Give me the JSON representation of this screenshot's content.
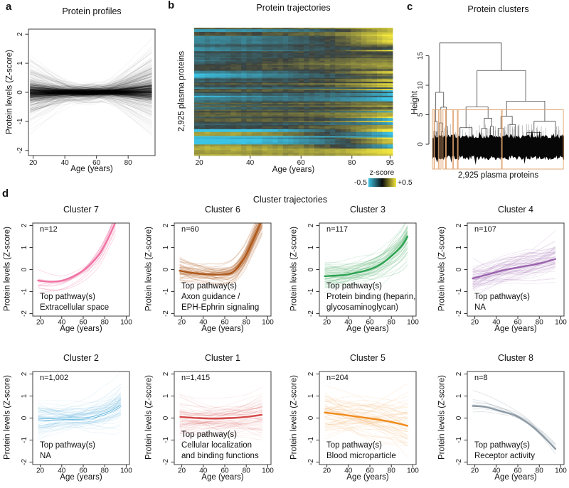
{
  "figure": {
    "panel_labels": {
      "a": "a",
      "b": "b",
      "c": "c",
      "d": "d"
    }
  },
  "chart_data": [
    {
      "id": "protein_profiles",
      "panel": "a",
      "type": "line",
      "title": "Protein profiles",
      "xlabel": "Age (years)",
      "ylabel": "Protein levels (Z-score)",
      "xlim": [
        17,
        97
      ],
      "ylim": [
        -2.25,
        2.25
      ],
      "xticks": [
        20,
        40,
        60,
        80
      ],
      "yticks": [
        -2,
        -1,
        0,
        1,
        2
      ],
      "n_lines": 2925,
      "line_color": "#000000"
    },
    {
      "id": "protein_trajectories",
      "panel": "b",
      "type": "heatmap",
      "title": "Protein trajectories",
      "xlabel": "Age (years)",
      "ylabel": "2,925 plasma proteins",
      "xlim": [
        18,
        96
      ],
      "xticks": [
        20,
        40,
        60,
        80,
        95
      ],
      "value_range": [
        -0.5,
        0.5
      ],
      "colorbar": {
        "label": "z-score",
        "min_label": "-0.5",
        "max_label": "+0.5",
        "min_color": "#3EC4E4",
        "mid_color": "#0B0B0B",
        "max_color": "#F2E63E"
      }
    },
    {
      "id": "protein_clusters",
      "panel": "c",
      "type": "dendrogram",
      "title": "Protein clusters",
      "xlabel": "2,925 plasma proteins",
      "ylabel": "Height",
      "yticks": [
        0,
        5,
        10,
        15
      ],
      "root_height": 17.2,
      "n_clusters": 8,
      "cluster_box_color": "#E0A26B",
      "cluster_boxes": [
        [
          0.0,
          0.012
        ],
        [
          0.015,
          0.045
        ],
        [
          0.05,
          0.065
        ],
        [
          0.08,
          0.1
        ],
        [
          0.105,
          0.155
        ],
        [
          0.16,
          0.19
        ],
        [
          0.195,
          0.525
        ],
        [
          0.53,
          0.995
        ]
      ]
    },
    {
      "id": "cluster_trajectories",
      "panel": "d",
      "type": "line-small-multiples",
      "title": "Cluster trajectories",
      "xlabel": "Age (years)",
      "ylabel": "Protein levels (Z-score)",
      "xlim": [
        13,
        103
      ],
      "ylim": [
        -2.25,
        2.25
      ],
      "xticks": [
        20,
        40,
        60,
        80,
        100
      ],
      "yticks": [
        -2,
        -1,
        0,
        1,
        2
      ],
      "age_range_of_data": [
        18,
        95
      ],
      "subplots": [
        {
          "title": "Cluster 7",
          "n_label": "n=12",
          "n": 12,
          "color": "#EF72A3",
          "pathway": [
            "Top pathway(s)",
            "Extracellular space"
          ],
          "mean_curve": {
            "x": [
              18,
              30,
              42,
              55,
              65,
              75,
              82,
              90
            ],
            "y": [
              -0.5,
              -0.55,
              -0.48,
              -0.2,
              0.15,
              0.7,
              1.3,
              2.15
            ]
          },
          "spread": [
            0.22,
            0.1,
            0.25
          ],
          "mean_style": "color"
        },
        {
          "title": "Cluster 6",
          "n_label": "n=60",
          "n": 60,
          "color": "#AF5A1D",
          "pathway": [
            "Top pathway(s)",
            "Axon guidance /",
            "EPH-Ephrin signaling"
          ],
          "mean_curve": {
            "x": [
              18,
              30,
              45,
              58,
              68,
              78,
              86,
              95
            ],
            "y": [
              -0.05,
              -0.15,
              -0.22,
              -0.22,
              -0.1,
              0.5,
              1.3,
              2.3
            ]
          },
          "spread": [
            0.28,
            0.13,
            0.4
          ],
          "mean_style": "color"
        },
        {
          "title": "Cluster 3",
          "n_label": "n=117",
          "n": 117,
          "color": "#2FA353",
          "pathway": [
            "Top pathway(s)",
            "Protein binding (heparin,",
            "glycosaminoglycan)"
          ],
          "mean_curve": {
            "x": [
              18,
              35,
              50,
              62,
              72,
              82,
              90,
              95
            ],
            "y": [
              -0.3,
              -0.25,
              -0.12,
              0.05,
              0.3,
              0.7,
              1.1,
              1.5
            ]
          },
          "spread": [
            0.3,
            0.18,
            0.45
          ],
          "mean_style": "color"
        },
        {
          "title": "Cluster 4",
          "n_label": "n=107",
          "n": 107,
          "color": "#9A63AD",
          "pathway": [
            "Top pathway(s)",
            "NA"
          ],
          "mean_curve": {
            "x": [
              18,
              30,
              45,
              58,
              70,
              82,
              95
            ],
            "y": [
              -0.4,
              -0.25,
              -0.05,
              0.08,
              0.18,
              0.3,
              0.48
            ]
          },
          "spread": [
            0.4,
            0.25,
            0.5
          ],
          "mean_style": "color"
        },
        {
          "title": "Cluster 2",
          "n_label": "n=1,002",
          "n": 1002,
          "color": "#2D9FD6",
          "pathway": [
            "Top pathway(s)",
            "NA"
          ],
          "mean_curve": {
            "x": [
              18,
              35,
              50,
              65,
              78,
              88,
              95
            ],
            "y": [
              -0.08,
              -0.05,
              -0.03,
              0.0,
              0.15,
              0.35,
              0.55
            ]
          },
          "spread": [
            0.38,
            0.18,
            0.5
          ],
          "mean_style": "white_double"
        },
        {
          "title": "Cluster 1",
          "n_label": "n=1,415",
          "n": 1415,
          "color": "#D23B3B",
          "pathway": [
            "Top pathway(s)",
            "Cellular localization",
            "and binding functions"
          ],
          "mean_curve": {
            "x": [
              18,
              35,
              50,
              65,
              80,
              95
            ],
            "y": [
              0.05,
              0.0,
              -0.02,
              0.0,
              0.05,
              0.15
            ]
          },
          "spread": [
            0.42,
            0.18,
            0.45
          ],
          "mean_style": "white_double"
        },
        {
          "title": "Cluster 5",
          "n_label": "n=204",
          "n": 204,
          "color": "#F08C1E",
          "pathway": [
            "Top pathway(s)",
            "Blood microparticle"
          ],
          "mean_curve": {
            "x": [
              18,
              35,
              50,
              65,
              80,
              95
            ],
            "y": [
              0.25,
              0.15,
              0.05,
              -0.05,
              -0.18,
              -0.35
            ]
          },
          "spread": [
            0.45,
            0.3,
            0.6
          ],
          "mean_style": "color"
        },
        {
          "title": "Cluster 8",
          "n_label": "n=8",
          "n": 8,
          "color": "#8D9BA6",
          "pathway": [
            "Top pathway(s)",
            "Receptor activity"
          ],
          "mean_curve": {
            "x": [
              18,
              30,
              45,
              58,
              70,
              82,
              95
            ],
            "y": [
              0.55,
              0.5,
              0.3,
              0.1,
              -0.25,
              -0.75,
              -1.4
            ]
          },
          "spread": [
            0.25,
            0.08,
            0.2
          ],
          "mean_style": "color"
        }
      ]
    }
  ]
}
